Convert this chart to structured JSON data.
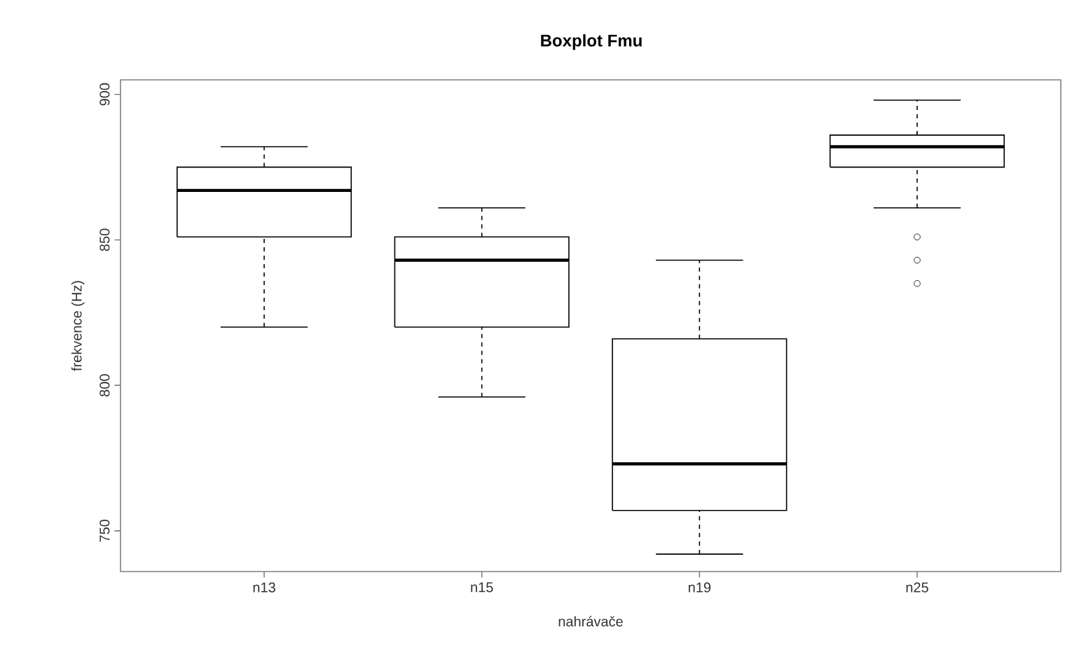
{
  "chart_data": {
    "type": "box",
    "title": "Boxplot Fmu",
    "xlabel": "nahrávače",
    "ylabel": "frekvence (Hz)",
    "categories": [
      "n13",
      "n15",
      "n19",
      "n25"
    ],
    "boxes": [
      {
        "low": 820,
        "q1": 851,
        "median": 867,
        "q3": 875,
        "high": 882
      },
      {
        "low": 796,
        "q1": 820,
        "median": 843,
        "q3": 851,
        "high": 861
      },
      {
        "low": 742,
        "q1": 757,
        "median": 773,
        "q3": 816,
        "high": 843
      },
      {
        "low": 861,
        "q1": 875,
        "median": 882,
        "q3": 886,
        "high": 898,
        "outliers": [
          851,
          843,
          835
        ]
      }
    ],
    "ylim": [
      736,
      905
    ],
    "yticks": [
      750,
      800,
      850,
      900
    ]
  }
}
